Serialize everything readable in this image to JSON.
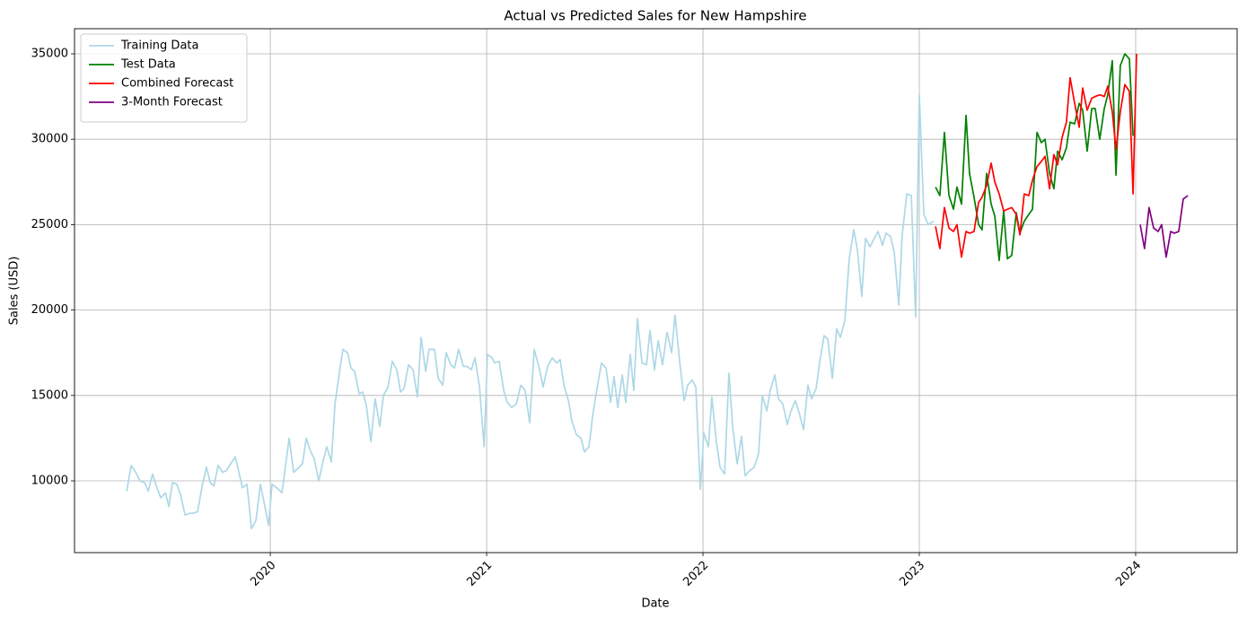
{
  "chart_data": {
    "type": "line",
    "title": "Actual vs Predicted Sales for New Hampshire",
    "x_label": "Date",
    "y_label": "Sales (USD)",
    "xlim": [
      2019.095,
      2024.469
    ],
    "ylim": [
      5800,
      36470
    ],
    "xticks": [
      2020,
      2021,
      2022,
      2023,
      2024
    ],
    "yticks": [
      10000,
      15000,
      20000,
      25000,
      30000,
      35000
    ],
    "grid": true,
    "legend": "upper left",
    "series": [
      {
        "name": "Training Data",
        "color": "#add8e6",
        "x": [
          2019.336,
          2019.357,
          2019.378,
          2019.398,
          2019.419,
          2019.436,
          2019.456,
          2019.473,
          2019.494,
          2019.515,
          2019.531,
          2019.548,
          2019.568,
          2019.585,
          2019.606,
          2019.627,
          2019.643,
          2019.664,
          2019.685,
          2019.705,
          2019.722,
          2019.739,
          2019.759,
          2019.78,
          2019.797,
          2019.817,
          2019.838,
          2019.855,
          2019.871,
          2019.892,
          2019.913,
          2019.934,
          2019.954,
          2019.975,
          2019.992,
          2020.008,
          2020.029,
          2020.054,
          2020.087,
          2020.108,
          2020.133,
          2020.149,
          2020.166,
          2020.187,
          2020.203,
          2020.224,
          2020.245,
          2020.261,
          2020.282,
          2020.299,
          2020.32,
          2020.336,
          2020.357,
          2020.373,
          2020.39,
          2020.411,
          2020.427,
          2020.444,
          2020.465,
          2020.485,
          2020.506,
          2020.523,
          2020.544,
          2020.564,
          2020.585,
          2020.602,
          2020.618,
          2020.639,
          2020.66,
          2020.68,
          2020.697,
          2020.718,
          2020.734,
          2020.759,
          2020.776,
          2020.797,
          2020.813,
          2020.834,
          2020.851,
          2020.871,
          2020.892,
          2020.909,
          2020.929,
          2020.946,
          2020.967,
          2020.988,
          2021.004,
          2021.025,
          2021.037,
          2021.058,
          2021.079,
          2021.095,
          2021.116,
          2021.137,
          2021.158,
          2021.178,
          2021.199,
          2021.22,
          2021.241,
          2021.261,
          2021.282,
          2021.303,
          2021.324,
          2021.34,
          2021.357,
          2021.378,
          2021.394,
          2021.415,
          2021.436,
          2021.452,
          2021.473,
          2021.49,
          2021.51,
          2021.531,
          2021.552,
          2021.573,
          2021.589,
          2021.606,
          2021.627,
          2021.643,
          2021.664,
          2021.68,
          2021.697,
          2021.718,
          2021.739,
          2021.755,
          2021.776,
          2021.793,
          2021.813,
          2021.834,
          2021.855,
          2021.871,
          2021.892,
          2021.913,
          2021.929,
          2021.95,
          2021.967,
          2021.988,
          2022.004,
          2022.025,
          2022.041,
          2022.062,
          2022.079,
          2022.1,
          2022.12,
          2022.137,
          2022.158,
          2022.178,
          2022.195,
          2022.216,
          2022.237,
          2022.257,
          2022.274,
          2022.295,
          2022.311,
          2022.332,
          2022.349,
          2022.369,
          2022.39,
          2022.407,
          2022.427,
          2022.444,
          2022.465,
          2022.485,
          2022.502,
          2022.523,
          2022.539,
          2022.56,
          2022.577,
          2022.598,
          2022.618,
          2022.635,
          2022.656,
          2022.676,
          2022.697,
          2022.714,
          2022.734,
          2022.751,
          2022.772,
          2022.788,
          2022.809,
          2022.83,
          2022.846,
          2022.867,
          2022.884,
          2022.905,
          2022.921,
          2022.942,
          2022.963,
          2022.983,
          2023.0,
          2023.021,
          2023.041,
          2023.066
        ],
        "values": [
          9400,
          10900,
          10500,
          10000,
          9900,
          9400,
          10400,
          9700,
          9000,
          9300,
          8500,
          9900,
          9800,
          9200,
          8000,
          8100,
          8100,
          8200,
          9700,
          10800,
          9900,
          9700,
          10900,
          10500,
          10600,
          11000,
          11400,
          10500,
          9600,
          9800,
          7200,
          7700,
          9800,
          8500,
          7400,
          9800,
          9600,
          9300,
          12500,
          10500,
          10800,
          11000,
          12500,
          11700,
          11300,
          10000,
          11200,
          12000,
          11100,
          14500,
          16400,
          17700,
          17500,
          16600,
          16400,
          15100,
          15200,
          14400,
          12300,
          14800,
          13200,
          15000,
          15500,
          17000,
          16500,
          15200,
          15400,
          16800,
          16500,
          14900,
          18400,
          16400,
          17700,
          17700,
          16000,
          15600,
          17500,
          16800,
          16600,
          17700,
          16700,
          16700,
          16500,
          17200,
          15500,
          12000,
          17400,
          17200,
          16900,
          17000,
          15300,
          14600,
          14300,
          14500,
          15600,
          15300,
          13400,
          17700,
          16700,
          15500,
          16700,
          17200,
          16900,
          17100,
          15600,
          14700,
          13500,
          12700,
          12500,
          11700,
          12000,
          13800,
          15400,
          16900,
          16600,
          14600,
          16100,
          14300,
          16200,
          14600,
          17400,
          15300,
          19500,
          16900,
          16800,
          18800,
          16500,
          18200,
          16800,
          18700,
          17500,
          19700,
          17000,
          14700,
          15600,
          15900,
          15500,
          9500,
          12800,
          12000,
          14900,
          12300,
          10800,
          10400,
          16300,
          13200,
          11000,
          12600,
          10300,
          10600,
          10800,
          11600,
          15000,
          14100,
          15300,
          16200,
          14800,
          14500,
          13300,
          14100,
          14700,
          14000,
          13000,
          15600,
          14800,
          15400,
          16900,
          18500,
          18300,
          16000,
          18900,
          18400,
          19400,
          23000,
          24700,
          23500,
          20800,
          24200,
          23700,
          24100,
          24600,
          23800,
          24500,
          24300,
          23400,
          20300,
          24400,
          26800,
          26700,
          19600,
          32600,
          25600,
          25000,
          25200
        ]
      },
      {
        "name": "Test Data",
        "color": "#008000",
        "x": [
          2023.075,
          2023.095,
          2023.116,
          2023.137,
          2023.158,
          2023.174,
          2023.195,
          2023.216,
          2023.232,
          2023.253,
          2023.274,
          2023.29,
          2023.311,
          2023.332,
          2023.349,
          2023.369,
          2023.39,
          2023.407,
          2023.427,
          2023.448,
          2023.465,
          2023.485,
          2023.506,
          2023.523,
          2023.544,
          2023.564,
          2023.581,
          2023.602,
          2023.622,
          2023.639,
          2023.66,
          2023.68,
          2023.697,
          2023.718,
          2023.739,
          2023.755,
          2023.776,
          2023.797,
          2023.813,
          2023.834,
          2023.855,
          2023.871,
          2023.892,
          2023.909,
          2023.929,
          2023.95,
          2023.971,
          2023.988
        ],
        "values": [
          27200,
          26700,
          30400,
          26700,
          25900,
          27200,
          26200,
          31400,
          28000,
          26600,
          25000,
          24700,
          28000,
          26200,
          25500,
          22900,
          25800,
          23000,
          23200,
          25700,
          24500,
          25200,
          25600,
          25900,
          30400,
          29800,
          30000,
          28000,
          27100,
          29300,
          28800,
          29500,
          31000,
          30900,
          32100,
          31700,
          29300,
          31800,
          31800,
          30000,
          31800,
          32600,
          34600,
          27900,
          34300,
          35000,
          34700,
          30200
        ]
      },
      {
        "name": "Combined Forecast",
        "color": "#ff0000",
        "x": [
          2023.075,
          2023.095,
          2023.116,
          2023.137,
          2023.158,
          2023.174,
          2023.195,
          2023.216,
          2023.232,
          2023.253,
          2023.274,
          2023.29,
          2023.311,
          2023.332,
          2023.349,
          2023.369,
          2023.39,
          2023.407,
          2023.427,
          2023.448,
          2023.465,
          2023.485,
          2023.506,
          2023.523,
          2023.544,
          2023.564,
          2023.581,
          2023.602,
          2023.622,
          2023.639,
          2023.66,
          2023.68,
          2023.697,
          2023.718,
          2023.739,
          2023.755,
          2023.776,
          2023.797,
          2023.813,
          2023.834,
          2023.855,
          2023.871,
          2023.892,
          2023.909,
          2023.929,
          2023.95,
          2023.971,
          2023.988,
          2024.004
        ],
        "values": [
          24900,
          23600,
          26000,
          24800,
          24600,
          25000,
          23100,
          24600,
          24500,
          24600,
          26300,
          26600,
          27300,
          28600,
          27500,
          26800,
          25800,
          25900,
          26000,
          25600,
          24400,
          26800,
          26700,
          27600,
          28400,
          28700,
          29000,
          27100,
          29100,
          28500,
          30100,
          31000,
          33600,
          32100,
          30700,
          33000,
          31700,
          32400,
          32500,
          32600,
          32500,
          33100,
          31600,
          29400,
          31600,
          33200,
          32800,
          26800,
          35000
        ]
      },
      {
        "name": "3-Month Forecast",
        "color": "#800080",
        "x": [
          2024.021,
          2024.041,
          2024.062,
          2024.083,
          2024.104,
          2024.12,
          2024.141,
          2024.162,
          2024.178,
          2024.199,
          2024.22,
          2024.241
        ],
        "values": [
          25000,
          23600,
          26000,
          24800,
          24600,
          25000,
          23100,
          24600,
          24500,
          24600,
          26500,
          26700
        ]
      }
    ]
  }
}
